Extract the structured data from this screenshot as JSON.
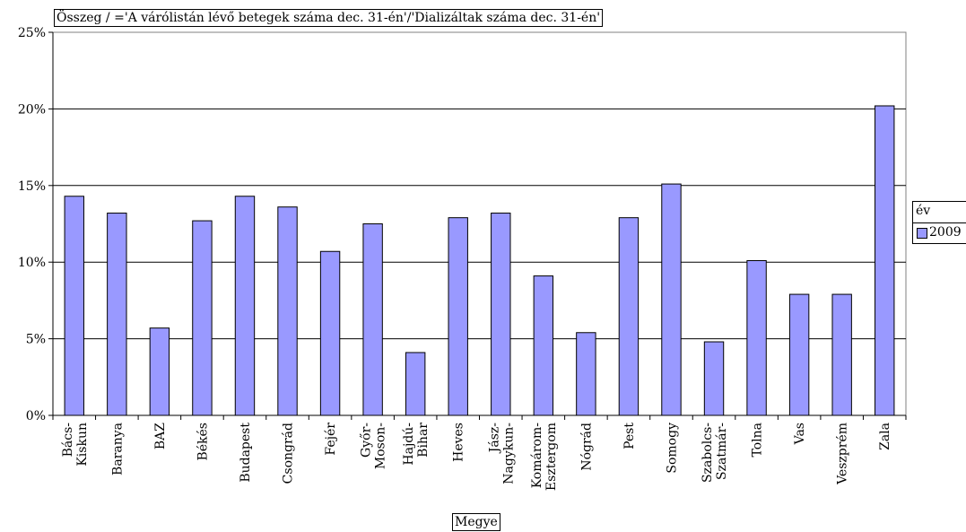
{
  "chart_title": "Összeg / ='A várólistán lévő betegek száma dec. 31-én'/'Dializáltak száma dec. 31-én'",
  "legend": {
    "title": "év",
    "entries": [
      "2009"
    ]
  },
  "colors": {
    "bar": "#9999ff",
    "gridline": "#000000"
  },
  "chart_data": {
    "type": "bar",
    "categories": [
      [
        "Bács-",
        "Kiskun"
      ],
      [
        "Baranya"
      ],
      [
        "BAZ"
      ],
      [
        "Békés"
      ],
      [
        "Budapest"
      ],
      [
        "Csongrád"
      ],
      [
        "Fejér"
      ],
      [
        "Győr-",
        "Moson-"
      ],
      [
        "Hajdú-",
        "Bihar"
      ],
      [
        "Heves"
      ],
      [
        "Jász-",
        "Nagykun-"
      ],
      [
        "Komárom-",
        "Esztergom"
      ],
      [
        "Nógrád"
      ],
      [
        "Pest"
      ],
      [
        "Somogy"
      ],
      [
        "Szabolcs-",
        "Szatmár-"
      ],
      [
        "Tolna"
      ],
      [
        "Vas"
      ],
      [
        "Veszprém"
      ],
      [
        "Zala"
      ]
    ],
    "series": [
      {
        "name": "2009",
        "values": [
          14.3,
          13.2,
          5.7,
          12.7,
          14.3,
          13.6,
          10.7,
          12.5,
          4.1,
          12.9,
          13.2,
          9.1,
          5.4,
          12.9,
          15.1,
          4.8,
          10.1,
          7.9,
          7.9,
          20.2
        ]
      }
    ],
    "xlabel": "Megye",
    "ylabel": "",
    "ylim": [
      0,
      25
    ],
    "yticks": [
      "0%",
      "5%",
      "10%",
      "15%",
      "20%",
      "25%"
    ],
    "grid": true,
    "legend_position": "right"
  }
}
